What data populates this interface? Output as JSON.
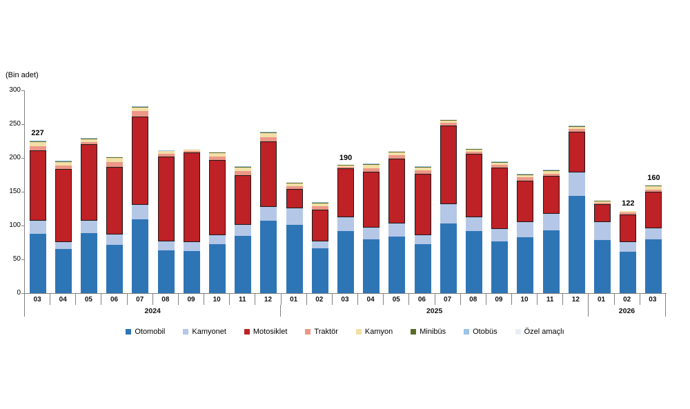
{
  "chart_data": {
    "type": "bar",
    "stacked": true,
    "title": "",
    "ylabel": "(Bin adet)",
    "ylim": [
      0,
      300
    ],
    "y_ticks": [
      0,
      50,
      100,
      150,
      200,
      250,
      300
    ],
    "grid": false,
    "legend_position": "bottom",
    "categories": [
      "2024-03",
      "2024-04",
      "2024-05",
      "2024-06",
      "2024-07",
      "2024-08",
      "2024-09",
      "2024-10",
      "2024-11",
      "2024-12",
      "2025-01",
      "2025-02",
      "2025-03",
      "2025-04",
      "2025-05",
      "2025-06",
      "2025-07",
      "2025-08",
      "2025-09",
      "2025-10",
      "2025-11",
      "2025-12",
      "2026-01",
      "2026-02",
      "2026-03"
    ],
    "x_month_labels": [
      "03",
      "04",
      "05",
      "06",
      "07",
      "08",
      "09",
      "10",
      "11",
      "12",
      "01",
      "02",
      "03",
      "04",
      "05",
      "06",
      "07",
      "08",
      "09",
      "10",
      "11",
      "12",
      "01",
      "02",
      "03"
    ],
    "x_year_groups": [
      {
        "label": "2024",
        "count": 10
      },
      {
        "label": "2025",
        "count": 12
      },
      {
        "label": "2026",
        "count": 3
      }
    ],
    "bar_value_labels": [
      {
        "index": 0,
        "text": "227"
      },
      {
        "index": 12,
        "text": "190"
      },
      {
        "index": 23,
        "text": "122"
      },
      {
        "index": 24,
        "text": "160"
      }
    ],
    "series": [
      {
        "key": "otomobil",
        "name": "Otomobil",
        "color": "#2E75B6",
        "border": false,
        "values": [
          88,
          65,
          89,
          71,
          109,
          63,
          62,
          72,
          85,
          107,
          101,
          66,
          92,
          80,
          84,
          72,
          103,
          92,
          77,
          83,
          93,
          144,
          79,
          61,
          80
        ]
      },
      {
        "key": "kamyonet",
        "name": "Kamyonet",
        "color": "#B4C7E7",
        "border": false,
        "values": [
          19,
          11,
          18,
          16,
          22,
          14,
          14,
          14,
          16,
          21,
          25,
          11,
          20,
          17,
          19,
          14,
          29,
          20,
          18,
          22,
          24,
          35,
          26,
          15,
          16
        ]
      },
      {
        "key": "motosiklet",
        "name": "Motosiklet",
        "color": "#BE2126",
        "border": true,
        "values": [
          104,
          108,
          113,
          100,
          130,
          125,
          132,
          111,
          74,
          96,
          28,
          47,
          73,
          83,
          96,
          91,
          116,
          94,
          91,
          61,
          56,
          60,
          27,
          40,
          54
        ]
      },
      {
        "key": "traktor",
        "name": "Traktör",
        "color": "#EC9787",
        "border": false,
        "values": [
          6,
          5,
          4,
          7,
          8,
          4,
          2,
          5,
          6,
          7,
          4,
          5,
          2,
          5,
          5,
          5,
          4,
          3,
          4,
          5,
          4,
          4,
          2,
          3,
          3
        ]
      },
      {
        "key": "kamyon",
        "name": "Kamyon",
        "color": "#F2DFA7",
        "border": false,
        "values": [
          7,
          5,
          4,
          6,
          6,
          4,
          2,
          5,
          5,
          6,
          4,
          4,
          2,
          5,
          4,
          4,
          3,
          3,
          3,
          4,
          4,
          3,
          2,
          2,
          5
        ]
      },
      {
        "key": "minibus",
        "name": "Minibüs",
        "color": "#5A6B29",
        "border": false,
        "values": [
          1,
          1,
          1,
          1,
          1,
          0.5,
          0.5,
          1,
          1,
          1,
          1,
          1,
          0.5,
          1,
          1,
          1,
          1,
          1,
          1,
          1,
          1,
          1,
          0.5,
          0.5,
          1
        ]
      },
      {
        "key": "otobus",
        "name": "Otobüs",
        "color": "#9DC3E6",
        "border": false,
        "values": [
          1,
          1,
          0.5,
          0.5,
          0.5,
          0.5,
          0.3,
          0.5,
          0.5,
          0.7,
          0.5,
          0.5,
          0.3,
          0.5,
          0.5,
          0.5,
          0.6,
          0.5,
          0.5,
          0.5,
          0.5,
          0.6,
          0.3,
          0.3,
          0.6
        ]
      },
      {
        "key": "ozel_amacli",
        "name": "Özel amaçlı",
        "color": "#E9EEF5",
        "border": false,
        "values": [
          1,
          1,
          0.5,
          0.5,
          0.5,
          0.5,
          0.2,
          0.5,
          0.5,
          0.3,
          0.5,
          0.5,
          0.2,
          0.5,
          0.5,
          0.5,
          0.4,
          0.5,
          0.5,
          0.5,
          0.5,
          0.4,
          0.2,
          0.2,
          0.4
        ]
      }
    ]
  },
  "legend": {
    "items": [
      {
        "label": "Otomobil",
        "color": "#2E75B6"
      },
      {
        "label": "Kamyonet",
        "color": "#B4C7E7"
      },
      {
        "label": "Motosiklet",
        "color": "#BE2126"
      },
      {
        "label": "Traktör",
        "color": "#EC9787"
      },
      {
        "label": "Kamyon",
        "color": "#F2DFA7"
      },
      {
        "label": "Minibüs",
        "color": "#5A6B29"
      },
      {
        "label": "Otobüs",
        "color": "#9DC3E6"
      },
      {
        "label": "Özel amaçlı",
        "color": "#E9EEF5"
      }
    ]
  }
}
